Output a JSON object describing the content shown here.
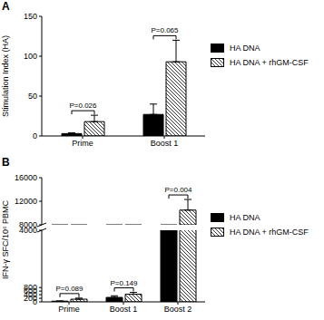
{
  "chart_data": [
    {
      "type": "bar",
      "title": "A",
      "ylabel": "Stimulation Index (HA)",
      "categories": [
        "Prime",
        "Boost 1"
      ],
      "series": [
        {
          "name": "HA DNA",
          "color": "#000000",
          "values": [
            3,
            27
          ],
          "errors": [
            1,
            13
          ]
        },
        {
          "name": "HA DNA + rhGM-CSF",
          "color": "#000000",
          "marker": "hatch",
          "values": [
            18,
            93
          ],
          "errors": [
            8,
            27
          ]
        }
      ],
      "annotations": [
        "P=0.026",
        "P=0.065"
      ],
      "ylim": [
        0,
        150
      ],
      "yticks": [
        0,
        50,
        100,
        150
      ],
      "legend": "right"
    },
    {
      "type": "bar",
      "title": "B",
      "ylabel": "IFN-γ SFC/10⁶ PBMC",
      "categories": [
        "Prime",
        "Boost 1",
        "Boost 2"
      ],
      "series": [
        {
          "name": "HA DNA",
          "color": "#000000",
          "values": [
            40,
            250,
            4400
          ],
          "errors": [
            10,
            90,
            150
          ]
        },
        {
          "name": "HA DNA + rhGM-CSF",
          "color": "#000000",
          "marker": "hatch",
          "values": [
            150,
            430,
            10500
          ],
          "errors": [
            60,
            100,
            1800
          ]
        }
      ],
      "annotations": [
        "P=0.089",
        "P=0.149",
        "P=0.004"
      ],
      "ylim": [
        0,
        16000
      ],
      "yticks": [
        0,
        200,
        400,
        600,
        800,
        4000,
        8000,
        12000,
        16000
      ],
      "legend": "right"
    }
  ]
}
